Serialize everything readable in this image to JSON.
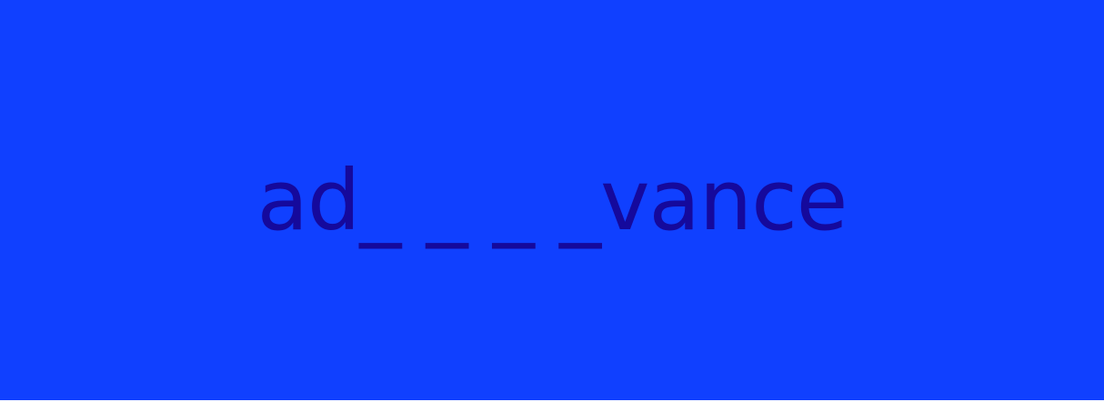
{
  "banner": {
    "background_color": "#1040ff",
    "text_color": "#15099c",
    "text": "ad_ _ _ _vance"
  }
}
